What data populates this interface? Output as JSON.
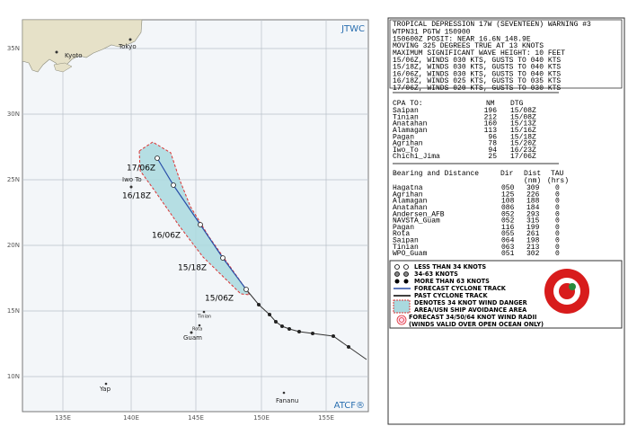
{
  "map": {
    "brand": "JTWC",
    "credit": "ATCF®",
    "lat_labels": [
      "35N",
      "30N",
      "25N",
      "20N",
      "15N",
      "10N"
    ],
    "lon_labels": [
      "135E",
      "140E",
      "145E",
      "150E",
      "155E"
    ],
    "places": [
      "Kyoto",
      "Tokyo",
      "Iwo To",
      "Tinian",
      "Rota",
      "Guam",
      "Yap",
      "Fananu"
    ],
    "track_labels": [
      "17/06Z",
      "16/18Z",
      "16/06Z",
      "15/18Z",
      "15/06Z"
    ]
  },
  "warning": {
    "title": "TROPICAL DEPRESSION 17W (SEVENTEEN) WARNING #3",
    "lines": [
      "WTPN31 PGTW 150900",
      "150600Z POSIT: NEAR 16.6N 148.9E",
      "MOVING 325 DEGREES TRUE AT 13 KNOTS",
      "MAXIMUM SIGNIFICANT WAVE HEIGHT: 10 FEET",
      "15/06Z, WINDS 030 KTS, GUSTS TO 040 KTS",
      "15/18Z, WINDS 030 KTS, GUSTS TO 040 KTS",
      "16/06Z, WINDS 030 KTS, GUSTS TO 040 KTS",
      "16/18Z, WINDS 025 KTS, GUSTS TO 035 KTS",
      "17/06Z, WINDS 020 KTS, GUSTS TO 030 KTS"
    ]
  },
  "cpa": {
    "header": [
      "CPA TO:",
      "NM",
      "DTG"
    ],
    "rows": [
      [
        "Saipan",
        "196",
        "15/08Z"
      ],
      [
        "Tinian",
        "212",
        "15/08Z"
      ],
      [
        "Anatahan",
        "160",
        "15/13Z"
      ],
      [
        "Alamagan",
        "113",
        "15/16Z"
      ],
      [
        "Pagan",
        "96",
        "15/18Z"
      ],
      [
        "Agrihan",
        "78",
        "15/20Z"
      ],
      [
        "Iwo_To",
        "94",
        "16/23Z"
      ],
      [
        "Chichi_Jima",
        "25",
        "17/06Z"
      ]
    ]
  },
  "bearing": {
    "header": [
      "Bearing and Distance",
      "Dir",
      "Dist",
      "TAU"
    ],
    "units": [
      "(nm)",
      "(hrs)"
    ],
    "rows": [
      [
        "Hagatna",
        "050",
        "309",
        "0"
      ],
      [
        "Agrihan",
        "125",
        "226",
        "0"
      ],
      [
        "Alamagan",
        "108",
        "188",
        "0"
      ],
      [
        "Anatahan",
        "086",
        "184",
        "0"
      ],
      [
        "Andersen_AFB",
        "052",
        "293",
        "0"
      ],
      [
        "NAVSTA_Guam",
        "052",
        "315",
        "0"
      ],
      [
        "Pagan",
        "116",
        "199",
        "0"
      ],
      [
        "Rota",
        "055",
        "261",
        "0"
      ],
      [
        "Saipan",
        "064",
        "198",
        "0"
      ],
      [
        "Tinian",
        "063",
        "213",
        "0"
      ],
      [
        "WPO_Guam",
        "051",
        "302",
        "0"
      ]
    ]
  },
  "legend": {
    "items": [
      "LESS THAN 34 KNOTS",
      "34-63 KNOTS",
      "MORE THAN 63 KNOTS",
      "FORECAST CYCLONE TRACK",
      "PAST CYCLONE TRACK",
      "DENOTES 34 KNOT WIND DANGER",
      "AREA/USN SHIP AVOIDANCE AREA",
      "FORECAST 34/50/64 KNOT WIND RADII",
      "(WINDS VALID OVER OPEN OCEAN ONLY)"
    ]
  }
}
